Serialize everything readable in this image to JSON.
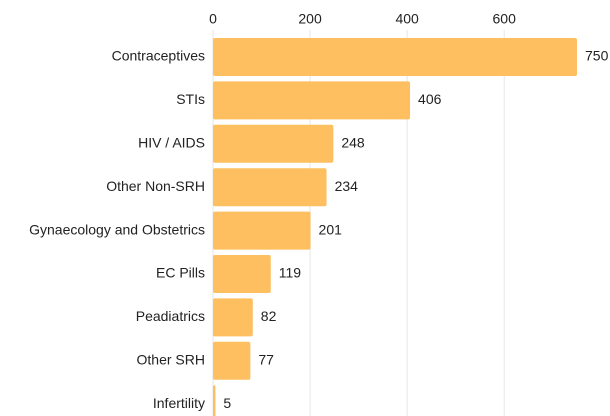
{
  "chart_data": {
    "type": "bar",
    "orientation": "horizontal",
    "categories": [
      "Contraceptives",
      "STIs",
      "HIV / AIDS",
      "Other Non-SRH",
      "Gynaecology and Obstetrics",
      "EC Pills",
      "Peadiatrics",
      "Other SRH",
      "Infertility"
    ],
    "values": [
      750,
      406,
      248,
      234,
      201,
      119,
      82,
      77,
      5
    ],
    "color": "#fdbf5f",
    "xlim": [
      0,
      750
    ],
    "xticks": [
      0,
      200,
      400,
      600
    ],
    "grid": true
  }
}
